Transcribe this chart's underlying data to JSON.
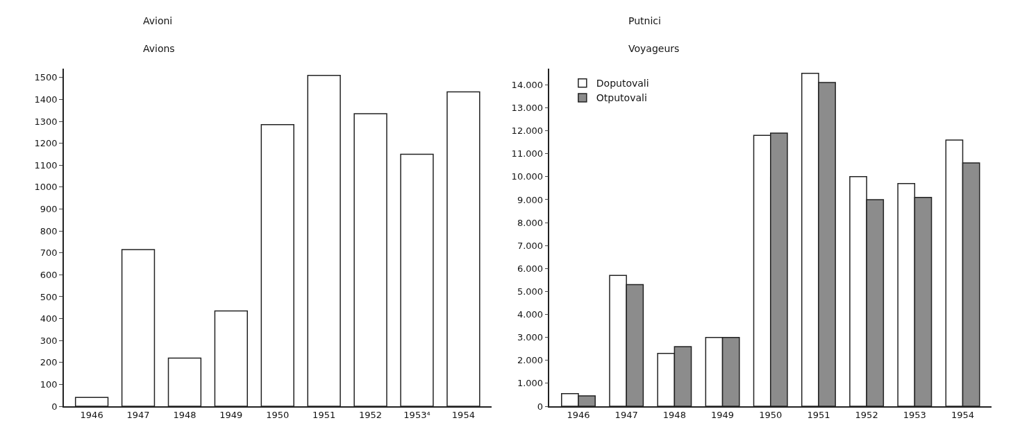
{
  "chart_data": [
    {
      "type": "bar",
      "title": "Avioni",
      "subtitle": "Avions",
      "categories": [
        "1946",
        "1947",
        "1948",
        "1949",
        "1950",
        "1951",
        "1952",
        "1953⁴",
        "1954"
      ],
      "series": [
        {
          "color": "#ffffff",
          "values": [
            40,
            715,
            220,
            435,
            1285,
            1510,
            1335,
            1150,
            1435
          ]
        }
      ],
      "ylim": [
        0,
        1540
      ],
      "yticks": [
        0,
        100,
        200,
        300,
        400,
        500,
        600,
        700,
        800,
        900,
        1000,
        1100,
        1200,
        1300,
        1400,
        1500
      ],
      "legend": false
    },
    {
      "type": "bar",
      "title": "Putnici",
      "subtitle": "Voyageurs",
      "categories": [
        "1946",
        "1947",
        "1948",
        "1949",
        "1950",
        "1951",
        "1952",
        "1953",
        "1954"
      ],
      "series": [
        {
          "name": "Doputovali",
          "color": "#ffffff",
          "values": [
            550,
            5700,
            2300,
            3000,
            11800,
            14500,
            10000,
            9700,
            11600
          ]
        },
        {
          "name": "Otputovali",
          "color": "#8c8c8c",
          "values": [
            450,
            5300,
            2600,
            3000,
            11900,
            14100,
            9000,
            9100,
            10600
          ]
        }
      ],
      "ylim": [
        0,
        14700
      ],
      "yticks": [
        {
          "value": 0,
          "label": "0"
        },
        {
          "value": 1000,
          "label": "1.000"
        },
        {
          "value": 2000,
          "label": "2.000"
        },
        {
          "value": 3000,
          "label": "3.000"
        },
        {
          "value": 4000,
          "label": "4.000"
        },
        {
          "value": 5000,
          "label": "5.000"
        },
        {
          "value": 6000,
          "label": "6.000"
        },
        {
          "value": 7000,
          "label": "7.000"
        },
        {
          "value": 8000,
          "label": "8.000"
        },
        {
          "value": 9000,
          "label": "9.000"
        },
        {
          "value": 10000,
          "label": "10.000"
        },
        {
          "value": 11000,
          "label": "11.000"
        },
        {
          "value": 12000,
          "label": "12.000"
        },
        {
          "value": 13000,
          "label": "13.000"
        },
        {
          "value": 14000,
          "label": "14.000"
        }
      ],
      "legend": "top left"
    }
  ]
}
